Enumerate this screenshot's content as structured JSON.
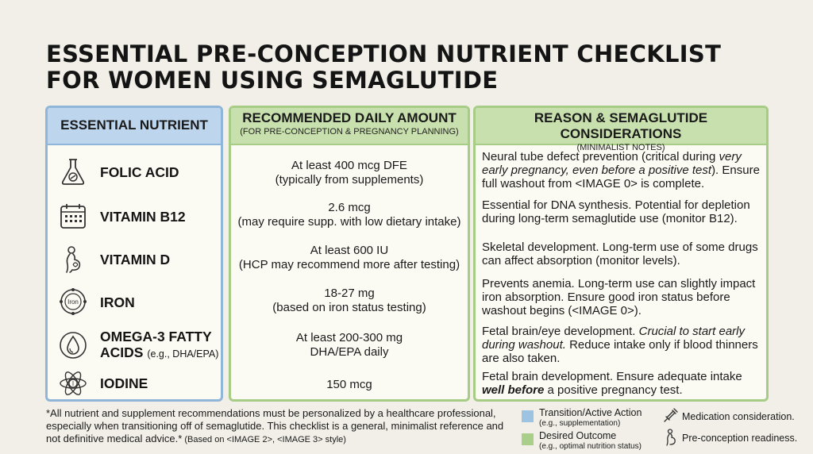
{
  "title": {
    "line1": "ESSENTIAL PRE-CONCEPTION NUTRIENT CHECKLIST",
    "line2": "FOR WOMEN USING SEMAGLUTIDE"
  },
  "columns": {
    "nutrient": {
      "title": "ESSENTIAL NUTRIENT"
    },
    "amount": {
      "title": "RECOMMENDED DAILY AMOUNT",
      "subtitle": "(FOR PRE-CONCEPTION & PREGNANCY PLANNING)"
    },
    "reason": {
      "title": "REASON & SEMAGLUTIDE CONSIDERATIONS",
      "subtitle": "(MINIMALIST NOTES)"
    }
  },
  "rows": [
    {
      "name": "FOLIC ACID",
      "name_sub": "",
      "icon": "flask-icon",
      "amount_line1": "At least 400 mcg DFE",
      "amount_line2": "(typically from supplements)",
      "reason_parts": [
        {
          "t": "Neural tube defect prevention (critical during "
        },
        {
          "t": "very early pregnancy, even before a positive test",
          "style": "em"
        },
        {
          "t": "). Ensure full washout from <IMAGE 0> is complete."
        }
      ]
    },
    {
      "name": "VITAMIN B12",
      "name_sub": "",
      "icon": "calendar-icon",
      "amount_line1": "2.6 mcg",
      "amount_line2": "(may require supp. with low dietary intake)",
      "reason_parts": [
        {
          "t": "Essential for DNA synthesis. Potential for depletion during long-term semaglutide use (monitor B12)."
        }
      ]
    },
    {
      "name": "VITAMIN D",
      "name_sub": "",
      "icon": "pregnant-woman-icon",
      "amount_line1": "At least 600 IU",
      "amount_line2": "(HCP may recommend more after testing)",
      "reason_parts": [
        {
          "t": "Skeletal development. Long-term use of some drugs can affect absorption (monitor levels)."
        }
      ]
    },
    {
      "name": "IRON",
      "name_sub": "",
      "icon": "iron-icon",
      "icon_text": "Iron",
      "amount_line1": "18-27 mg",
      "amount_line2": "(based on iron status testing)",
      "reason_parts": [
        {
          "t": "Prevents anemia. Long-term use can slightly impact iron absorption. Ensure good iron status before washout begins (<IMAGE 0>)."
        }
      ]
    },
    {
      "name": "OMEGA-3 FATTY",
      "name_line2": "ACIDS",
      "name_sub": "(e.g., DHA/EPA)",
      "icon": "droplet-icon",
      "amount_line1": "At least 200-300 mg",
      "amount_line2": "DHA/EPA daily",
      "reason_parts": [
        {
          "t": "Fetal brain/eye development. "
        },
        {
          "t": "Crucial to start early during washout.",
          "style": "em"
        },
        {
          "t": " Reduce intake only if blood thinners are also taken."
        }
      ]
    },
    {
      "name": "IODINE",
      "name_sub": "",
      "icon": "atom-icon",
      "icon_text": "I",
      "amount_line1": "150 mcg",
      "amount_line2": "",
      "reason_parts": [
        {
          "t": "Fetal brain development. Ensure adequate intake "
        },
        {
          "t": "well before",
          "style": "strong"
        },
        {
          "t": " a positive pregnancy test."
        }
      ]
    }
  ],
  "footnote": {
    "main": "*All nutrient and supplement recommendations must be personalized by a healthcare professional, especially when transitioning off of semaglutide. This checklist is a general, minimalist reference and not definitive medical advice.*",
    "source": " (Based on <IMAGE 2>, <IMAGE 3> style)"
  },
  "legend": {
    "items": [
      {
        "label": "Transition/Active Action",
        "sub": "(e.g., supplementation)",
        "color": "#9cc3e2"
      },
      {
        "label": "Desired Outcome",
        "sub": "(e.g., optimal nutrition status)",
        "color": "#a9cf8a"
      }
    ],
    "icons": [
      {
        "icon": "syringe-icon",
        "label": "Medication consideration."
      },
      {
        "icon": "pregnant-woman-icon",
        "label": "Pre-conception readiness."
      }
    ]
  },
  "colors": {
    "nutrient_header": "#bdd6ee",
    "green_header": "#c8e0ad",
    "background": "#f1efe7"
  }
}
